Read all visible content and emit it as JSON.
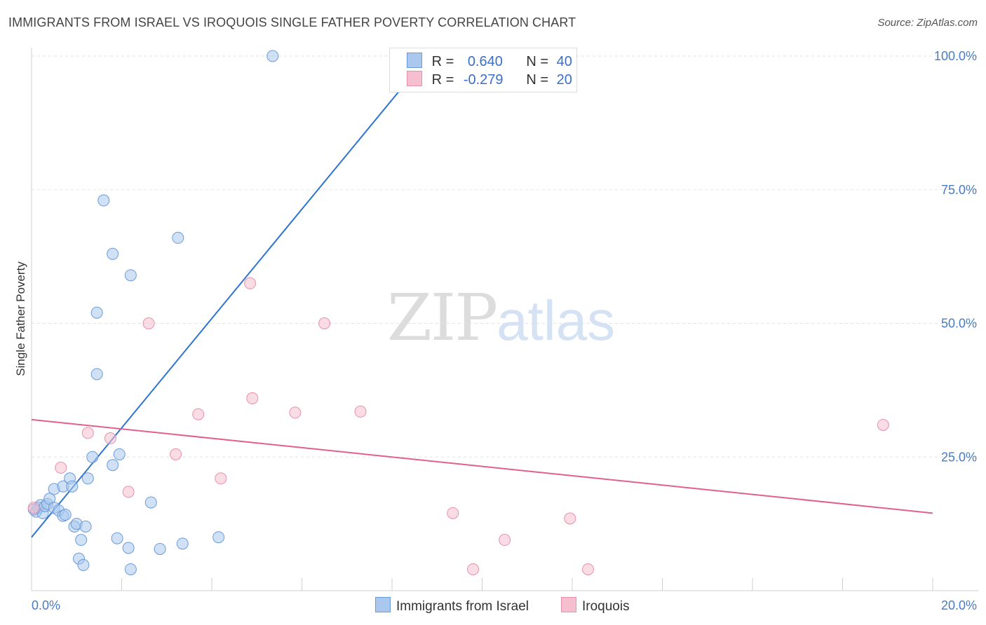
{
  "header": {
    "title": "IMMIGRANTS FROM ISRAEL VS IROQUOIS SINGLE FATHER POVERTY CORRELATION CHART",
    "source": "Source: ZipAtlas.com"
  },
  "watermark": {
    "zip": "ZIP",
    "atlas": "atlas"
  },
  "legend": {
    "rows": [
      {
        "r_label": "R =",
        "r_value": "0.640",
        "n_label": "N =",
        "n_value": "40"
      },
      {
        "r_label": "R =",
        "r_value": "-0.279",
        "n_label": "N =",
        "n_value": "20"
      }
    ]
  },
  "bottom_legend": {
    "series1": "Immigrants from Israel",
    "series2": "Iroquois"
  },
  "chart_data": {
    "type": "scatter",
    "title": "IMMIGRANTS FROM ISRAEL VS IROQUOIS SINGLE FATHER POVERTY CORRELATION CHART",
    "xlabel": "",
    "ylabel": "Single Father Poverty",
    "xlim": [
      0,
      20
    ],
    "ylim": [
      0,
      100
    ],
    "x_tick_labels": [
      "0.0%",
      "20.0%"
    ],
    "y_ticks": [
      25,
      50,
      75,
      100
    ],
    "y_tick_labels": [
      "25.0%",
      "50.0%",
      "75.0%",
      "100.0%"
    ],
    "grid": true,
    "legend_placement": "top-center",
    "colors": {
      "series1_fill": "#aac8ee",
      "series1_stroke": "#6a9bd8",
      "series1_line": "#2f74d0",
      "series2_fill": "#f6bfd0",
      "series2_stroke": "#e890ac",
      "series2_line": "#e0608e"
    },
    "series": [
      {
        "name": "Immigrants from Israel",
        "r": 0.64,
        "n": 40,
        "trend": {
          "x": [
            0,
            8.8
          ],
          "y": [
            10.0,
            100.0
          ]
        },
        "points": [
          [
            0.1,
            14.8
          ],
          [
            0.15,
            15.5
          ],
          [
            0.2,
            16.0
          ],
          [
            0.25,
            14.5
          ],
          [
            0.3,
            15.8
          ],
          [
            0.35,
            16.2
          ],
          [
            0.4,
            17.2
          ],
          [
            0.5,
            15.5
          ],
          [
            0.5,
            19.0
          ],
          [
            0.6,
            15.0
          ],
          [
            0.7,
            19.5
          ],
          [
            0.7,
            14.0
          ],
          [
            0.75,
            14.2
          ],
          [
            0.85,
            21.0
          ],
          [
            0.9,
            19.5
          ],
          [
            0.95,
            12.0
          ],
          [
            1.0,
            12.5
          ],
          [
            1.1,
            9.5
          ],
          [
            1.2,
            12.0
          ],
          [
            1.25,
            21.0
          ],
          [
            1.35,
            25.0
          ],
          [
            1.05,
            6.0
          ],
          [
            1.15,
            4.8
          ],
          [
            1.45,
            40.5
          ],
          [
            1.45,
            52.0
          ],
          [
            1.6,
            73.0
          ],
          [
            1.8,
            63.0
          ],
          [
            1.8,
            23.5
          ],
          [
            1.95,
            25.5
          ],
          [
            1.9,
            9.8
          ],
          [
            2.2,
            59.0
          ],
          [
            2.15,
            8.0
          ],
          [
            2.2,
            4.0
          ],
          [
            2.65,
            16.5
          ],
          [
            2.85,
            7.8
          ],
          [
            3.25,
            66.0
          ],
          [
            3.35,
            8.8
          ],
          [
            4.15,
            10.0
          ],
          [
            5.35,
            100.0
          ],
          [
            0.05,
            15.2
          ]
        ]
      },
      {
        "name": "Iroquois",
        "r": -0.279,
        "n": 20,
        "trend": {
          "x": [
            0,
            20
          ],
          "y": [
            32.0,
            14.5
          ]
        },
        "points": [
          [
            0.05,
            15.5
          ],
          [
            0.65,
            23.0
          ],
          [
            1.25,
            29.5
          ],
          [
            1.75,
            28.5
          ],
          [
            2.15,
            18.5
          ],
          [
            2.6,
            50.0
          ],
          [
            3.2,
            25.5
          ],
          [
            3.7,
            33.0
          ],
          [
            4.2,
            21.0
          ],
          [
            4.85,
            57.5
          ],
          [
            4.9,
            36.0
          ],
          [
            5.85,
            33.3
          ],
          [
            6.5,
            50.0
          ],
          [
            7.3,
            33.5
          ],
          [
            9.35,
            14.5
          ],
          [
            9.8,
            4.0
          ],
          [
            10.5,
            9.5
          ],
          [
            11.95,
            13.5
          ],
          [
            12.35,
            4.0
          ],
          [
            18.9,
            31.0
          ]
        ]
      }
    ]
  }
}
